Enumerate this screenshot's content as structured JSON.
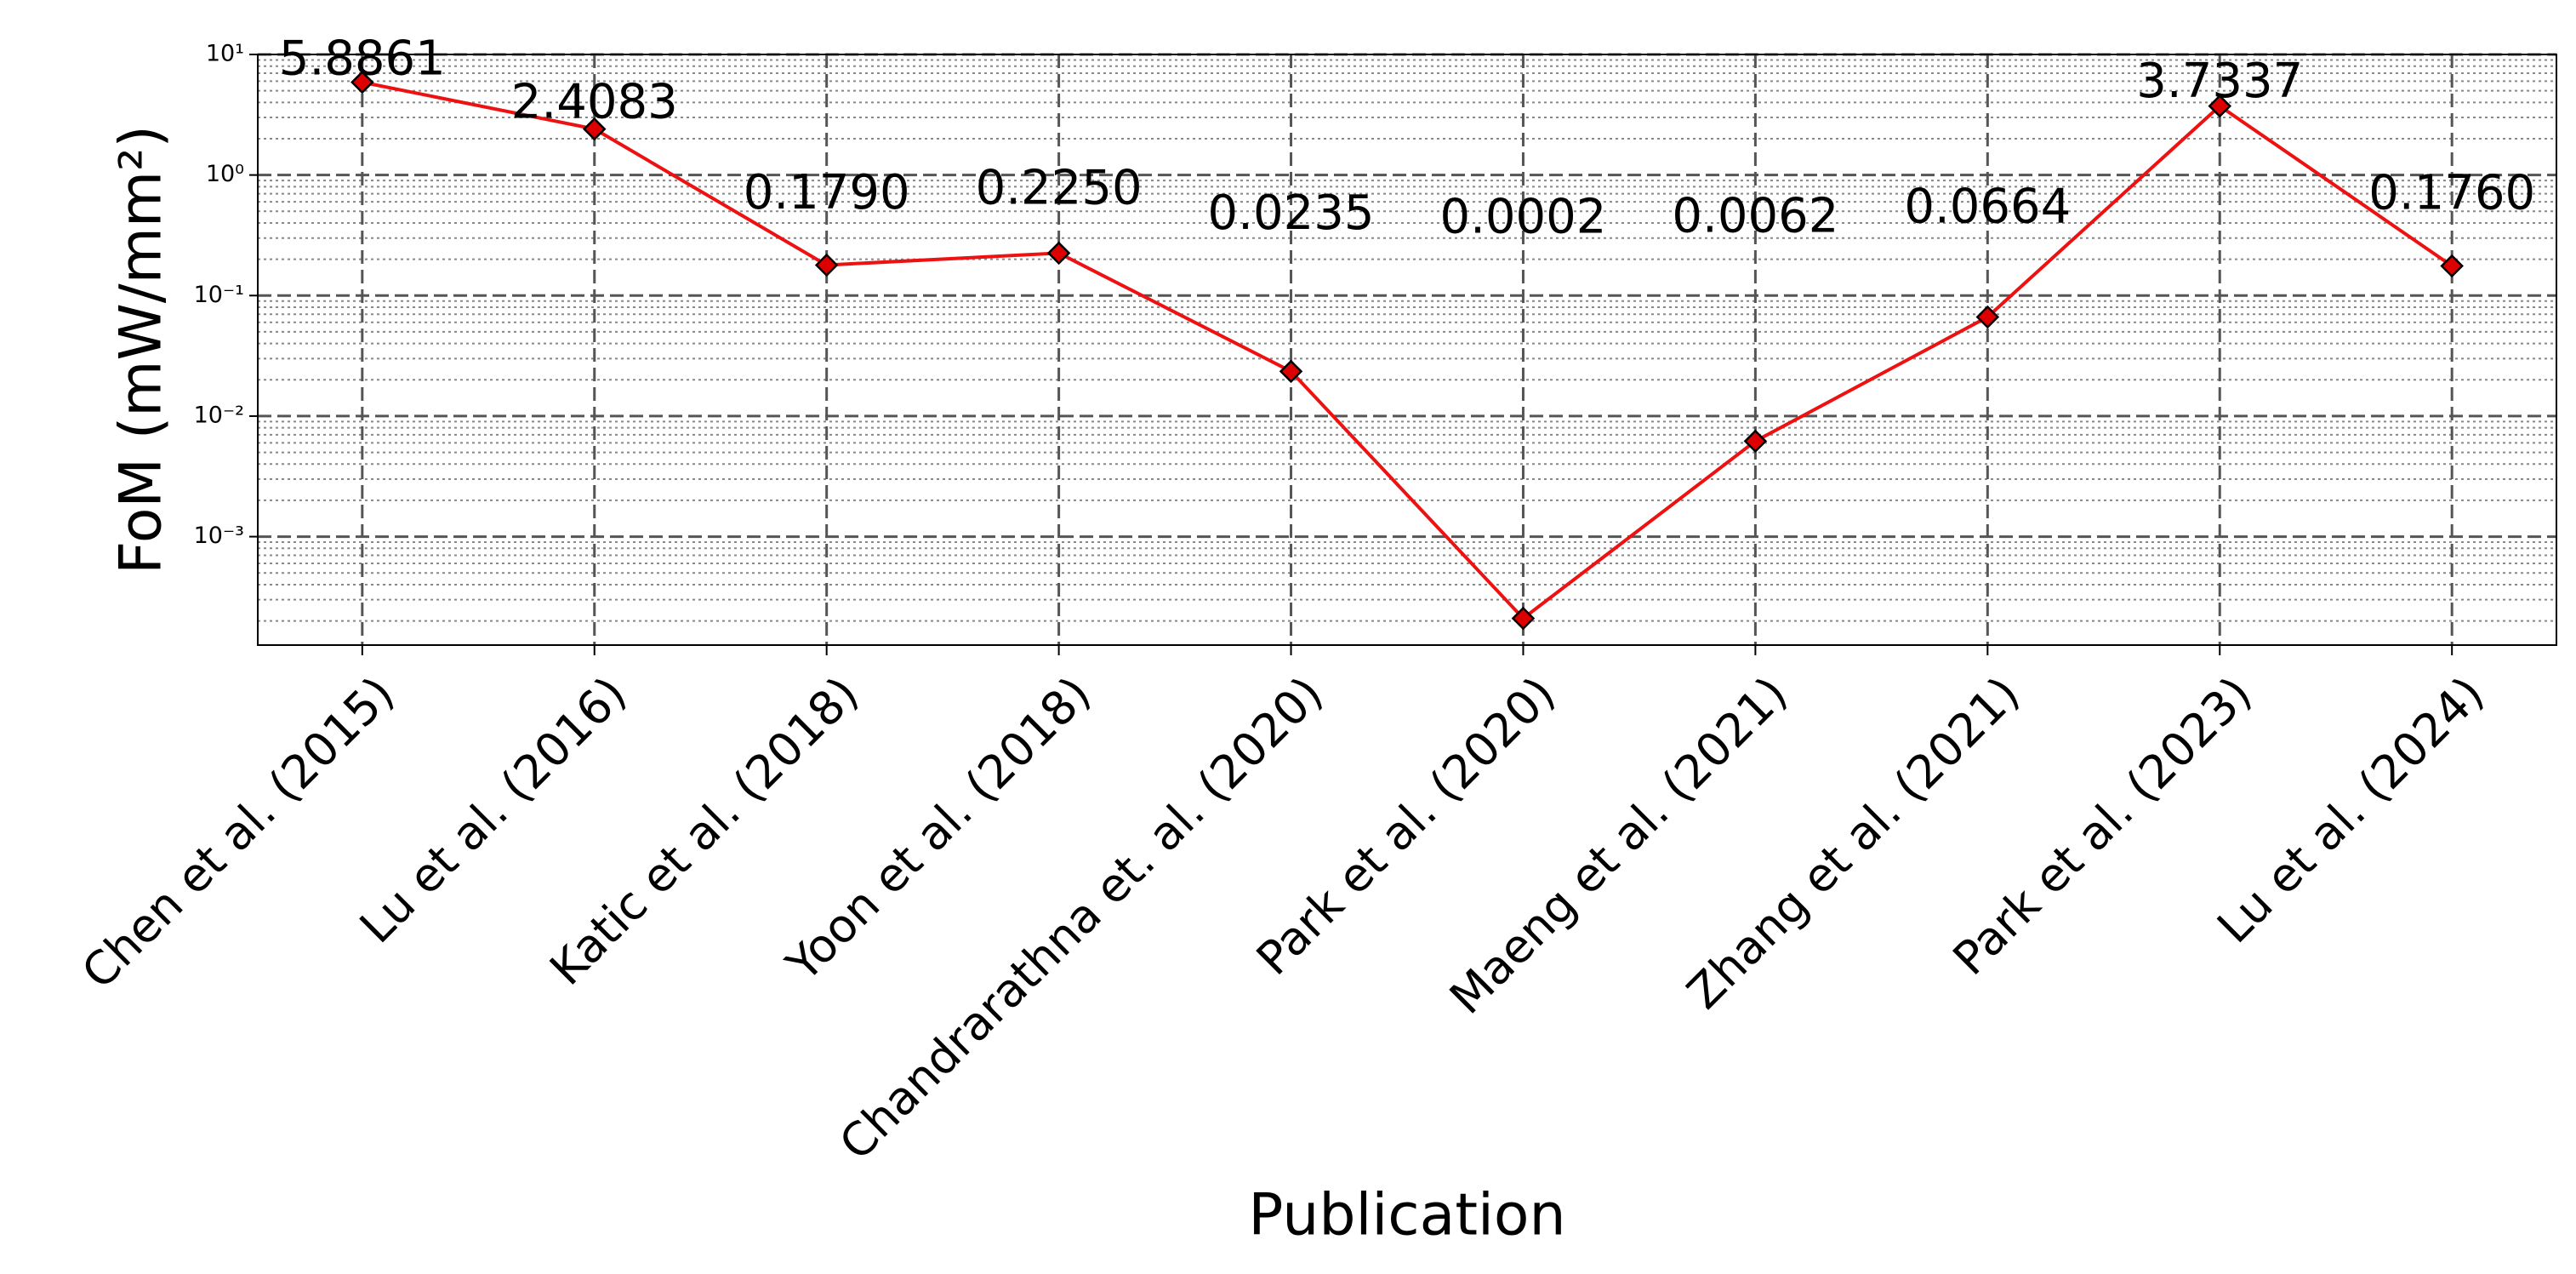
{
  "chart_data": {
    "type": "line",
    "xlabel": "Publication",
    "ylabel": "FoM (mW/mm²)",
    "categories": [
      "Chen et al. (2015)",
      "Lu et al. (2016)",
      "Katic et al. (2018)",
      "Yoon et al. (2018)",
      "Chandrarathna et. al. (2020)",
      "Park et al. (2020)",
      "Maeng et al. (2021)",
      "Zhang et al. (2021)",
      "Park et al. (2023)",
      "Lu et al. (2024)"
    ],
    "values": [
      5.8861,
      2.4083,
      0.179,
      0.225,
      0.0235,
      0.00021,
      0.0062,
      0.0664,
      3.7337,
      0.176
    ],
    "value_labels": [
      "5.8861",
      "2.4083",
      "0.1790",
      "0.2250",
      "0.0235",
      "0.0002",
      "0.0062",
      "0.0664",
      "3.7337",
      "0.1760"
    ],
    "color": "#ee1111",
    "marker_color": "#dd0000",
    "log_y": true,
    "ylim": [
      0.000126,
      10
    ],
    "yticks": [
      {
        "value": 0.001,
        "label": "10⁻³"
      },
      {
        "value": 0.01,
        "label": "10⁻²"
      },
      {
        "value": 0.1,
        "label": "10⁻¹"
      },
      {
        "value": 1,
        "label": "10⁰"
      },
      {
        "value": 10,
        "label": "10¹"
      }
    ],
    "yminorticks": [
      0.0002,
      0.0003,
      0.0004,
      0.0005,
      0.0006,
      0.0007,
      0.0008,
      0.0009,
      0.002,
      0.003,
      0.004,
      0.005,
      0.006,
      0.007,
      0.008,
      0.009,
      0.02,
      0.03,
      0.04,
      0.05,
      0.06,
      0.07,
      0.08,
      0.09,
      0.2,
      0.3,
      0.4,
      0.5,
      0.6,
      0.7,
      0.8,
      0.9,
      2,
      3,
      4,
      5,
      6,
      7,
      8,
      9
    ],
    "grid": true
  }
}
